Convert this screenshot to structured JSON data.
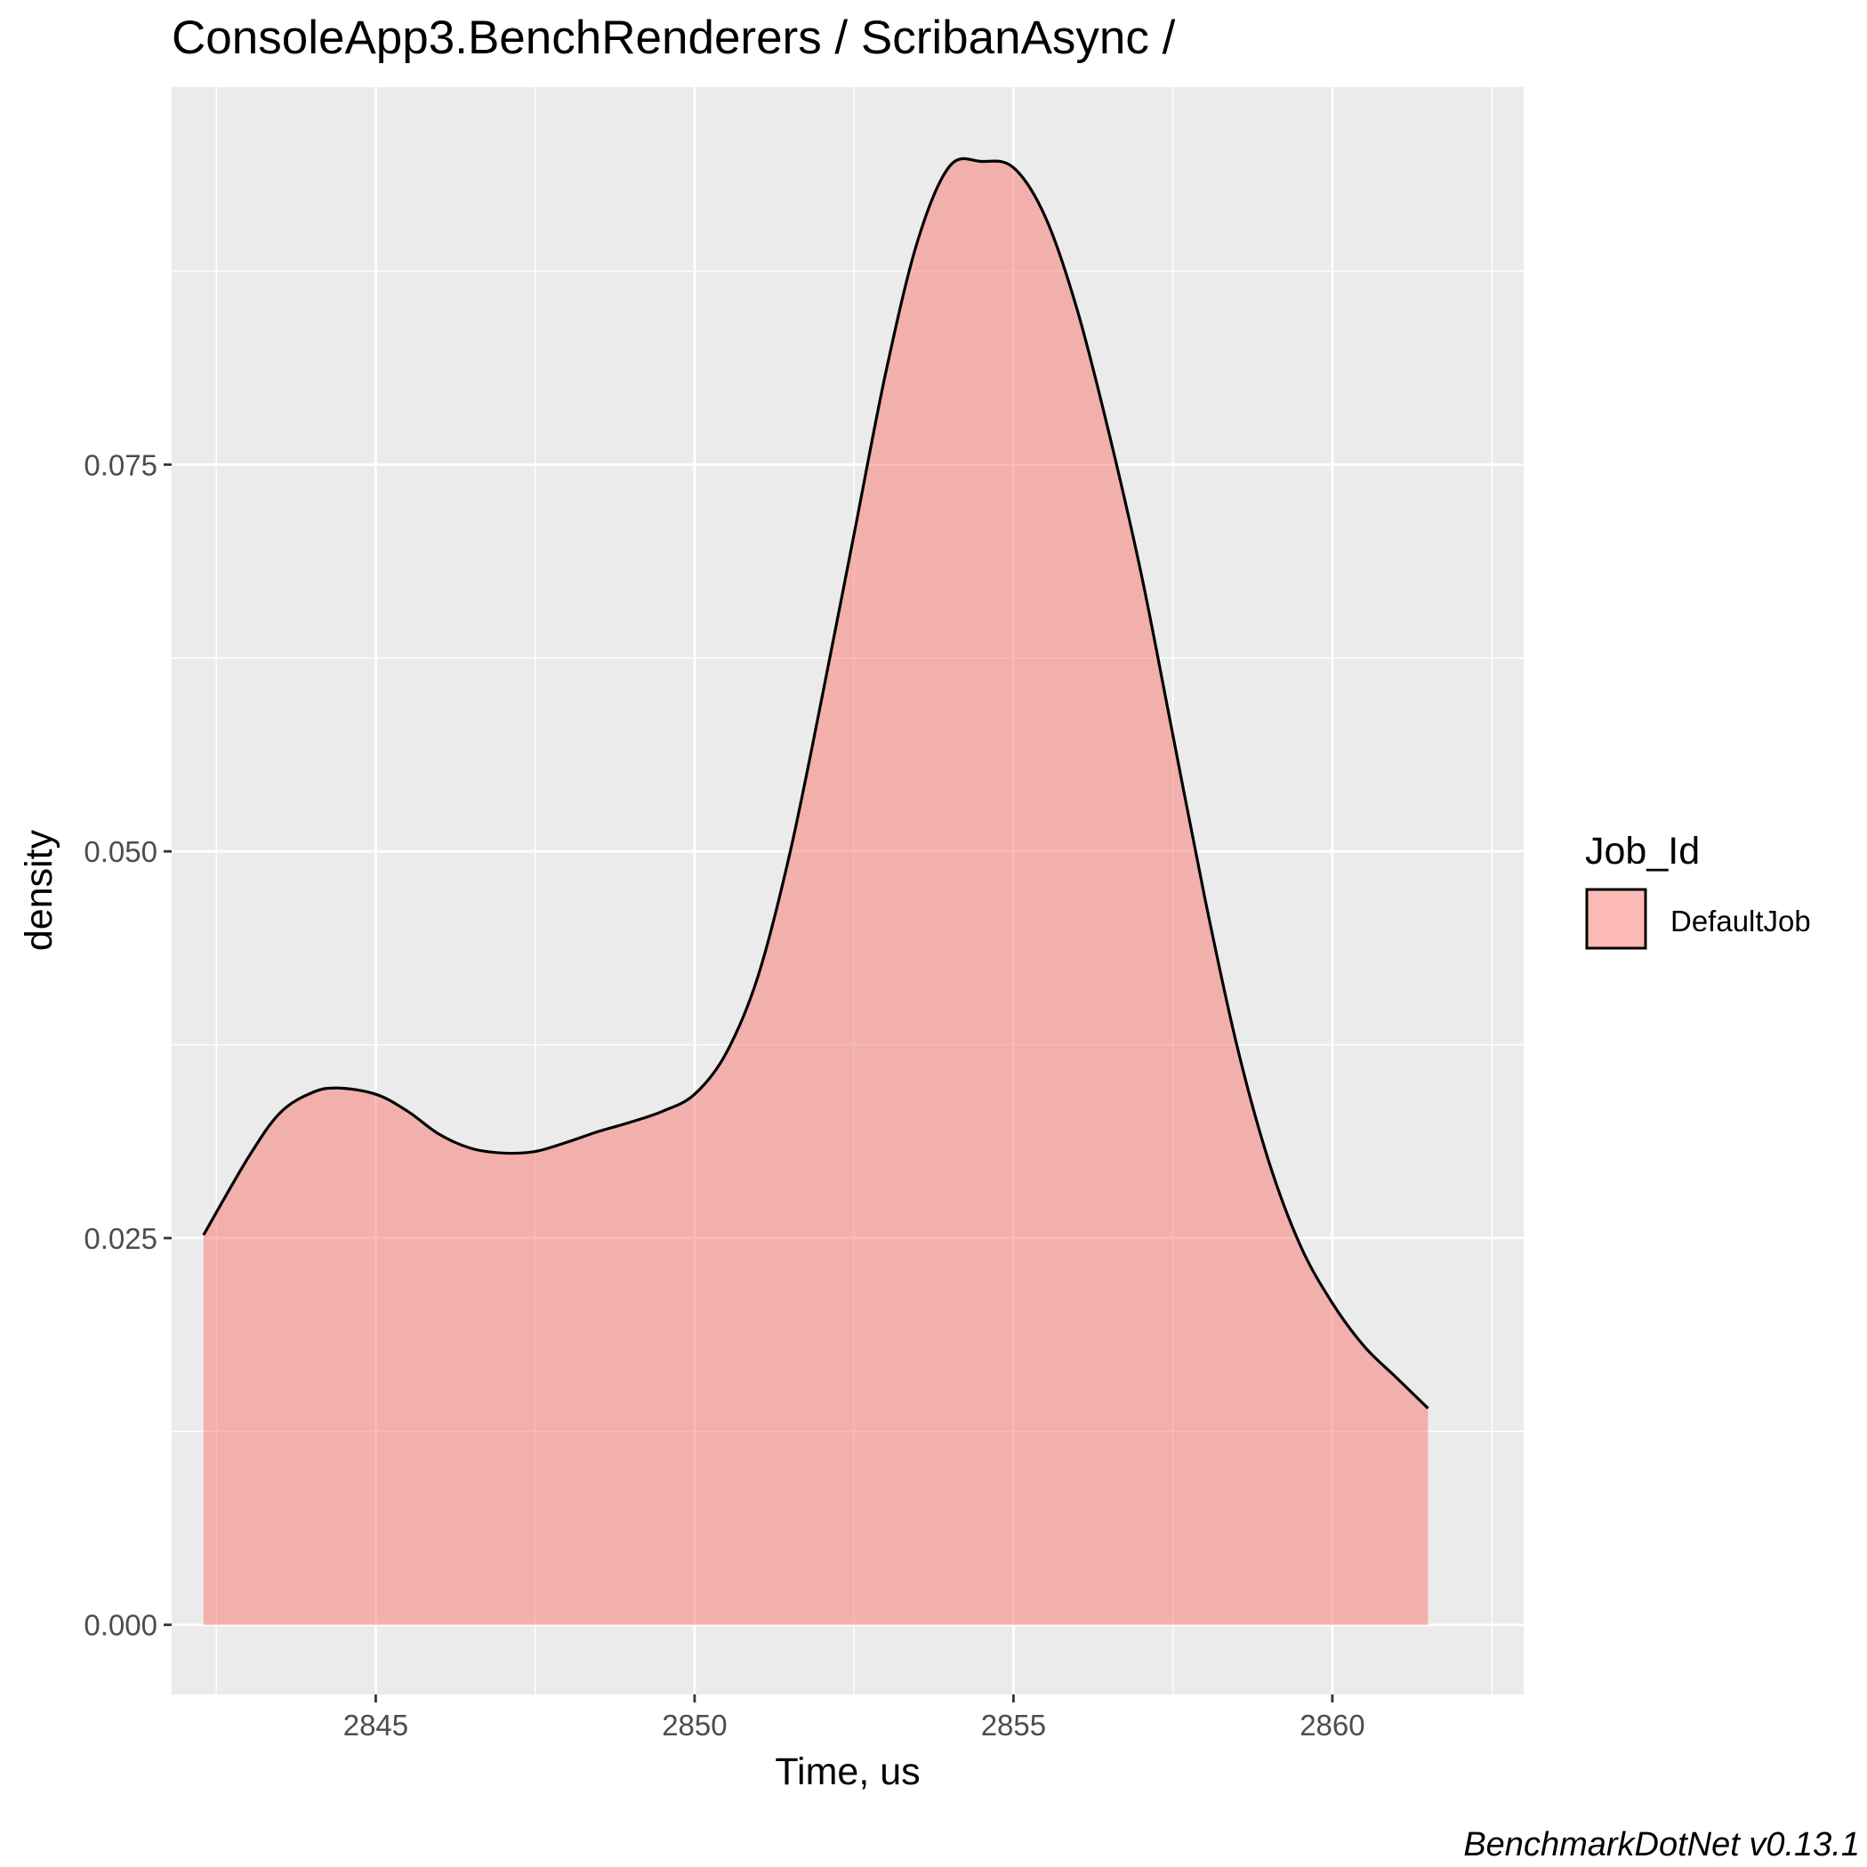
{
  "chart_data": {
    "type": "area",
    "title": "ConsoleApp3.BenchRenderers / ScribanAsync /",
    "xlabel": "Time, us",
    "ylabel": "density",
    "caption": "BenchmarkDotNet v0.13.1",
    "xlim": [
      2841.8,
      2863.0
    ],
    "ylim": [
      -0.0045,
      0.0994
    ],
    "x_ticks": [
      2845,
      2850,
      2855,
      2860
    ],
    "x_tick_labels": [
      "2845",
      "2850",
      "2855",
      "2860"
    ],
    "y_ticks": [
      0.0,
      0.025,
      0.05,
      0.075
    ],
    "y_tick_labels": [
      "0.000",
      "0.025",
      "0.050",
      "0.075"
    ],
    "grid": true,
    "legend": {
      "title": "Job_Id",
      "position": "right",
      "entries": [
        {
          "label": "DefaultJob",
          "color": "#F8766D"
        }
      ]
    },
    "series": [
      {
        "name": "DefaultJob",
        "fill_color": "#F8766D",
        "fill_opacity": 0.5,
        "line_color": "#000000",
        "x": [
          2842.3,
          2843.0,
          2843.5,
          2844.0,
          2844.4,
          2845.0,
          2845.5,
          2846.0,
          2846.5,
          2847.0,
          2847.5,
          2848.0,
          2848.5,
          2849.0,
          2849.5,
          2850.0,
          2850.5,
          2851.0,
          2851.5,
          2852.0,
          2852.5,
          2853.0,
          2853.5,
          2854.0,
          2854.5,
          2855.0,
          2855.5,
          2856.0,
          2856.5,
          2857.0,
          2857.5,
          2858.0,
          2858.5,
          2859.0,
          2859.5,
          2860.0,
          2860.5,
          2861.0,
          2861.5
        ],
        "y": [
          0.0252,
          0.0302,
          0.0331,
          0.0344,
          0.0347,
          0.0343,
          0.0332,
          0.0317,
          0.0308,
          0.0305,
          0.0306,
          0.0312,
          0.0319,
          0.0325,
          0.0332,
          0.0343,
          0.037,
          0.042,
          0.05,
          0.06,
          0.0705,
          0.081,
          0.0895,
          0.0943,
          0.0946,
          0.0942,
          0.091,
          0.085,
          0.077,
          0.068,
          0.0575,
          0.047,
          0.0375,
          0.03,
          0.0245,
          0.0208,
          0.018,
          0.016,
          0.014
        ]
      }
    ]
  }
}
